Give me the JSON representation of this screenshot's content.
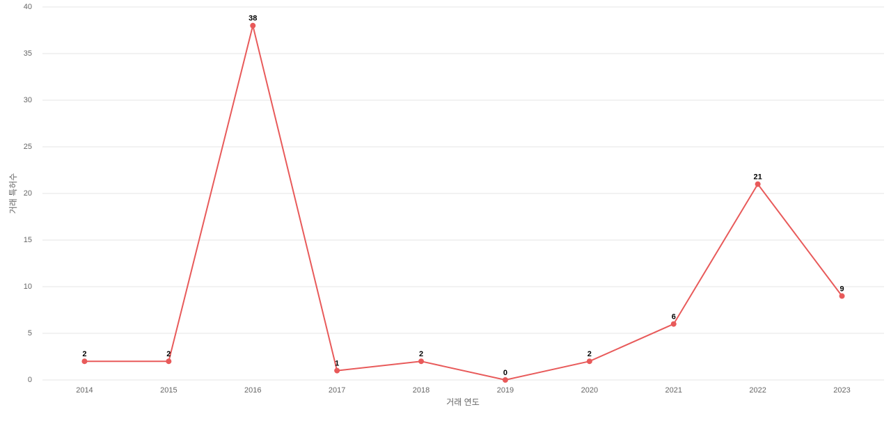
{
  "chart_data": {
    "type": "line",
    "x_label": "거래 연도",
    "y_label": "거래 특허수",
    "categories": [
      "2014",
      "2015",
      "2016",
      "2017",
      "2018",
      "2019",
      "2020",
      "2021",
      "2022",
      "2023"
    ],
    "values": [
      2,
      2,
      38,
      1,
      2,
      0,
      2,
      6,
      21,
      9
    ],
    "color": "#e85a5a",
    "ylim": [
      0,
      40
    ],
    "yticks": [
      0,
      5,
      10,
      15,
      20,
      25,
      30,
      35,
      40
    ],
    "grid": true
  }
}
